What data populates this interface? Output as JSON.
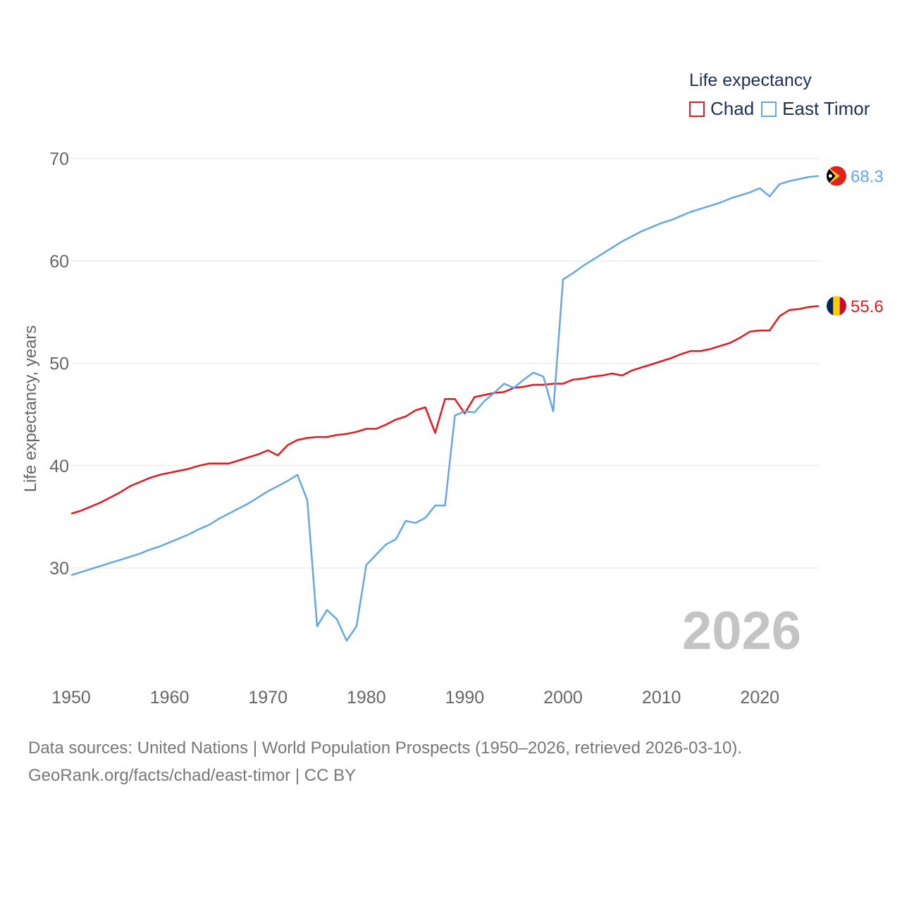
{
  "legend": {
    "title": "Life expectancy",
    "items": [
      {
        "label": "Chad",
        "color": "#e8161b"
      },
      {
        "label": "East Timor",
        "color": "#63a7e6"
      }
    ]
  },
  "footer": {
    "line1": "Data sources: United Nations | World Population Prospects (1950–2026, retrieved 2026-03-10).",
    "line2": "GeoRank.org/facts/chad/east-timor | CC BY"
  },
  "year_stamp": "2026",
  "chart_data": {
    "type": "line",
    "title": "Life expectancy",
    "xlabel": "",
    "ylabel": "Life expectancy, years",
    "xlim": [
      1950,
      2026
    ],
    "ylim": [
      20,
      71
    ],
    "x_ticks": [
      1950,
      1960,
      1970,
      1980,
      1990,
      2000,
      2010,
      2020
    ],
    "y_ticks": [
      30,
      40,
      50,
      60,
      70
    ],
    "grid": true,
    "x": [
      1950,
      1951,
      1952,
      1953,
      1954,
      1955,
      1956,
      1957,
      1958,
      1959,
      1960,
      1961,
      1962,
      1963,
      1964,
      1965,
      1966,
      1967,
      1968,
      1969,
      1970,
      1971,
      1972,
      1973,
      1974,
      1975,
      1976,
      1977,
      1978,
      1979,
      1980,
      1981,
      1982,
      1983,
      1984,
      1985,
      1986,
      1987,
      1988,
      1989,
      1990,
      1991,
      1992,
      1993,
      1994,
      1995,
      1996,
      1997,
      1998,
      1999,
      2000,
      2001,
      2002,
      2003,
      2004,
      2005,
      2006,
      2007,
      2008,
      2009,
      2010,
      2011,
      2012,
      2013,
      2014,
      2015,
      2016,
      2017,
      2018,
      2019,
      2020,
      2021,
      2022,
      2023,
      2024,
      2025,
      2026
    ],
    "series": [
      {
        "name": "Chad",
        "color": "#e8161b",
        "end_label": "55.6",
        "values": [
          35.3,
          35.6,
          36.0,
          36.4,
          36.9,
          37.4,
          38.0,
          38.4,
          38.8,
          39.1,
          39.3,
          39.5,
          39.7,
          40.0,
          40.2,
          40.2,
          40.2,
          40.5,
          40.8,
          41.1,
          41.5,
          41.0,
          42.0,
          42.5,
          42.7,
          42.8,
          42.8,
          43.0,
          43.1,
          43.3,
          43.6,
          43.6,
          44.0,
          44.5,
          44.8,
          45.4,
          45.7,
          43.2,
          46.5,
          46.5,
          45.1,
          46.7,
          46.9,
          47.1,
          47.2,
          47.6,
          47.7,
          47.9,
          47.9,
          48.0,
          48.0,
          48.4,
          48.5,
          48.7,
          48.8,
          49.0,
          48.8,
          49.3,
          49.6,
          49.9,
          50.2,
          50.5,
          50.9,
          51.2,
          51.2,
          51.4,
          51.7,
          52.0,
          52.5,
          53.1,
          53.2,
          53.2,
          54.6,
          55.2,
          55.3,
          55.5,
          55.6
        ]
      },
      {
        "name": "East Timor",
        "color": "#63a7e6",
        "end_label": "68.3",
        "values": [
          29.3,
          29.6,
          29.9,
          30.2,
          30.5,
          30.8,
          31.1,
          31.4,
          31.8,
          32.1,
          32.5,
          32.9,
          33.3,
          33.8,
          34.2,
          34.8,
          35.3,
          35.8,
          36.3,
          36.9,
          37.5,
          38.0,
          38.5,
          39.1,
          36.6,
          24.3,
          25.9,
          25.0,
          22.9,
          24.3,
          30.3,
          31.3,
          32.3,
          32.8,
          34.6,
          34.4,
          34.9,
          36.1,
          36.1,
          44.9,
          45.3,
          45.2,
          46.3,
          47.1,
          48.0,
          47.6,
          48.4,
          49.1,
          48.7,
          45.3,
          58.2,
          58.8,
          59.5,
          60.1,
          60.7,
          61.3,
          61.9,
          62.4,
          62.9,
          63.3,
          63.7,
          64.0,
          64.4,
          64.8,
          65.1,
          65.4,
          65.7,
          66.1,
          66.4,
          66.7,
          67.1,
          66.3,
          67.5,
          67.8,
          68.0,
          68.2,
          68.3
        ]
      }
    ]
  }
}
